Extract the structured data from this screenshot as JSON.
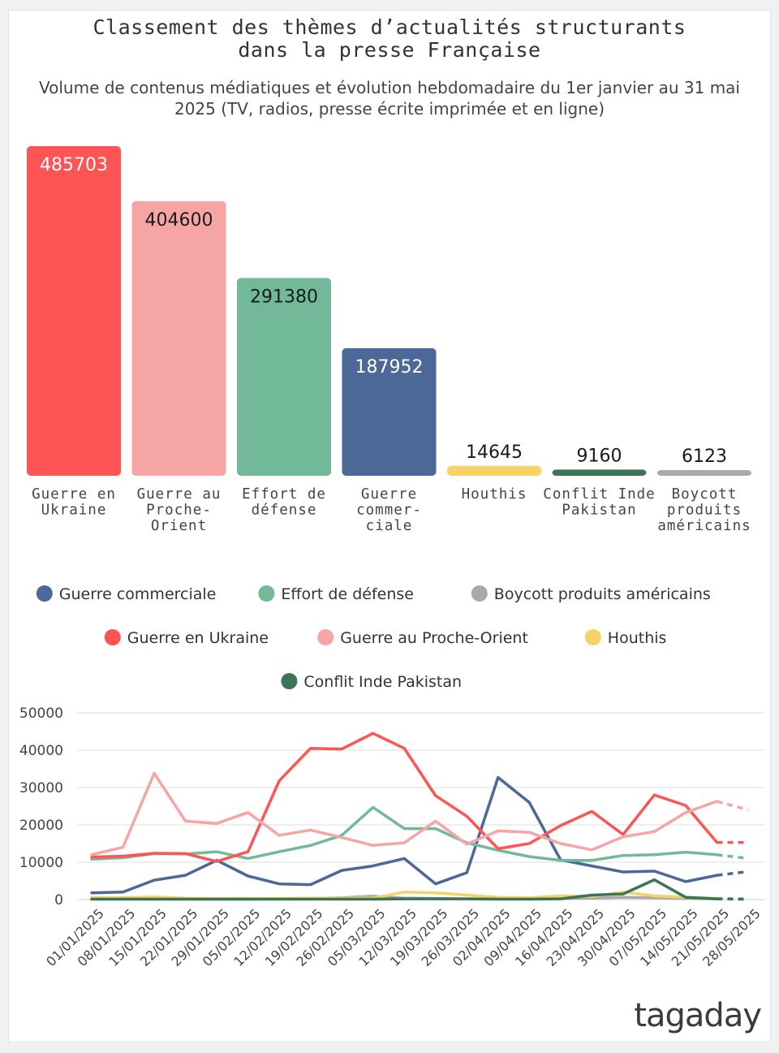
{
  "title_line1": "Classement des thèmes d’actualités structurants",
  "title_line2": "dans la presse Française",
  "subtitle_line1": "Volume de contenus médiatiques et évolution hebdomadaire du 1er janvier au 31 mai",
  "subtitle_line2": "2025 (TV, radios, presse écrite imprimée et en ligne)",
  "logo": "tagaday",
  "chart_data": [
    {
      "type": "bar",
      "categories": [
        [
          "Guerre en",
          "Ukraine"
        ],
        [
          "Guerre au",
          "Proche-",
          "Orient"
        ],
        [
          "Effort de",
          "défense"
        ],
        [
          "Guerre",
          "commer-",
          "ciale"
        ],
        [
          "Houthis"
        ],
        [
          "Conflit Inde",
          "Pakistan"
        ],
        [
          "Boycott",
          "produits",
          "américains"
        ]
      ],
      "values": [
        485703,
        404600,
        291380,
        187952,
        14645,
        9160,
        6123
      ],
      "colors": [
        "#ff5454",
        "#f6a5a5",
        "#72b999",
        "#4b6897",
        "#f6d365",
        "#3b7456",
        "#a9a9a9"
      ],
      "value_label_colors": [
        "#ffffff",
        "#1a1a1a",
        "#1a1a1a",
        "#ffffff",
        "#1a1a1a",
        "#1a1a1a",
        "#1a1a1a"
      ]
    },
    {
      "type": "line",
      "x": [
        "01/01/2025",
        "08/01/2025",
        "15/01/2025",
        "22/01/2025",
        "29/01/2025",
        "05/02/2025",
        "12/02/2025",
        "19/02/2025",
        "26/02/2025",
        "05/03/2025",
        "12/03/2025",
        "19/03/2025",
        "26/03/2025",
        "02/04/2025",
        "09/04/2025",
        "16/04/2025",
        "23/04/2025",
        "30/04/2025",
        "07/05/2025",
        "14/05/2025",
        "21/05/2025",
        "28/05/2025"
      ],
      "yticks": [
        "0",
        "10000",
        "20000",
        "30000",
        "40000",
        "50000"
      ],
      "ylim": [
        0,
        50000
      ],
      "grid": true,
      "projected_from_index": 20,
      "legend_rows": [
        [
          0,
          1,
          2
        ],
        [
          3,
          4,
          5
        ],
        [
          6
        ]
      ],
      "series": [
        {
          "name": "Guerre commerciale",
          "color": "#4b6897",
          "values": [
            1800,
            2000,
            5200,
            6500,
            10500,
            6300,
            4200,
            4000,
            7800,
            9000,
            11000,
            4200,
            7200,
            32700,
            26000,
            10600,
            9000,
            7400,
            7600,
            4800,
            6500,
            7500
          ]
        },
        {
          "name": "Effort de défense",
          "color": "#72b999",
          "values": [
            10800,
            11200,
            12300,
            12200,
            12800,
            11000,
            12800,
            14500,
            17200,
            24700,
            19000,
            19000,
            15200,
            13200,
            11500,
            10500,
            10500,
            11800,
            12000,
            12700,
            12000,
            11000
          ]
        },
        {
          "name": "Boycott produits américains",
          "color": "#a9a9a9",
          "values": [
            100,
            100,
            100,
            100,
            100,
            100,
            200,
            300,
            500,
            900,
            400,
            300,
            200,
            200,
            200,
            300,
            400,
            600,
            500,
            300,
            200,
            100
          ]
        },
        {
          "name": "Guerre en Ukraine",
          "color": "#ff5454",
          "values": [
            11400,
            11600,
            12400,
            12300,
            10200,
            12800,
            31800,
            40500,
            40300,
            44500,
            40500,
            27800,
            22300,
            13600,
            15000,
            19800,
            23600,
            17400,
            28000,
            25200,
            15300,
            15300
          ]
        },
        {
          "name": "Guerre au Proche-Orient",
          "color": "#f6a5a5",
          "values": [
            12000,
            14000,
            33800,
            21000,
            20400,
            23300,
            17200,
            18600,
            16600,
            14500,
            15200,
            21000,
            14800,
            18400,
            18000,
            15000,
            13300,
            16800,
            18200,
            23300,
            26300,
            24000
          ]
        },
        {
          "name": "Houthis",
          "color": "#f6d365",
          "values": [
            500,
            500,
            700,
            400,
            300,
            300,
            300,
            400,
            400,
            400,
            2000,
            1800,
            1200,
            600,
            500,
            1000,
            800,
            2000,
            1000,
            600,
            300,
            200
          ]
        },
        {
          "name": "Conflit Inde Pakistan",
          "color": "#3b7456",
          "values": [
            100,
            100,
            100,
            100,
            100,
            100,
            100,
            100,
            100,
            100,
            200,
            200,
            200,
            100,
            100,
            200,
            1200,
            1500,
            5300,
            600,
            200,
            100
          ]
        }
      ]
    }
  ]
}
